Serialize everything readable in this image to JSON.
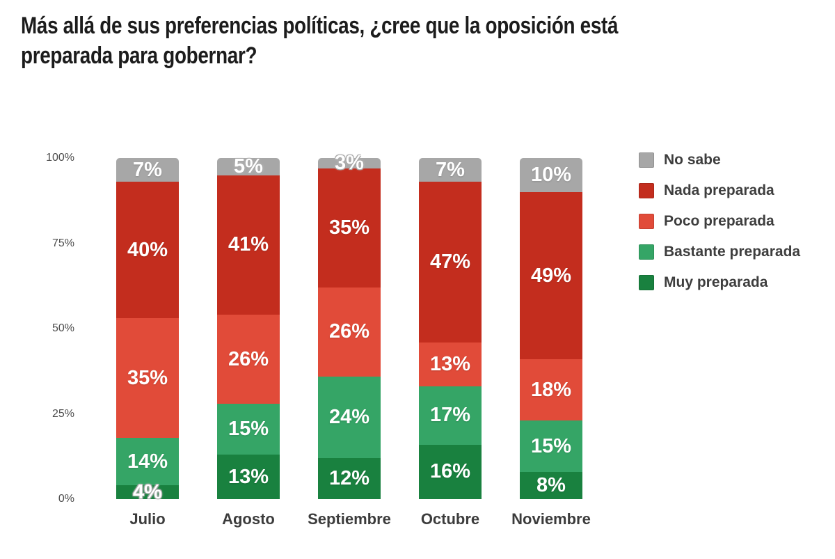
{
  "title": {
    "lines": [
      "Más allá de sus preferencias políticas, ¿cree que la oposición está",
      "preparada para gobernar?"
    ]
  },
  "chart_data": {
    "type": "bar",
    "stacked": true,
    "title": "Más allá de sus preferencias políticas, ¿cree que la oposición está preparada para gobernar?",
    "categories": [
      "Julio",
      "Agosto",
      "Septiembre",
      "Octubre",
      "Noviembre"
    ],
    "series": [
      {
        "name": "No sabe",
        "color": "#a7a7a7",
        "values": [
          7,
          5,
          3,
          7,
          10
        ]
      },
      {
        "name": "Nada preparada",
        "color": "#c32d1e",
        "values": [
          40,
          41,
          35,
          47,
          49
        ]
      },
      {
        "name": "Poco preparada",
        "color": "#e14b39",
        "values": [
          35,
          26,
          26,
          13,
          18
        ]
      },
      {
        "name": "Bastante preparada",
        "color": "#35a566",
        "values": [
          14,
          15,
          24,
          17,
          15
        ]
      },
      {
        "name": "Muy preparada",
        "color": "#19813f",
        "values": [
          4,
          13,
          12,
          16,
          8
        ]
      }
    ],
    "xlabel": "",
    "ylabel": "",
    "ylim": [
      0,
      100
    ],
    "y_ticks": [
      "100%",
      "75%",
      "50%",
      "25%",
      "0%"
    ],
    "value_suffix": "%",
    "grid": false,
    "legend_position": "right",
    "segment_order": "top-to-bottom",
    "label_color": "#ffffff"
  }
}
